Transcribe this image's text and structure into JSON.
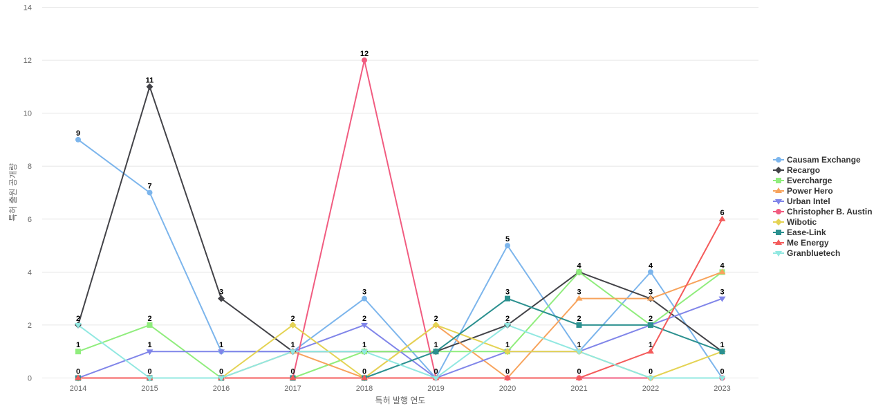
{
  "chart_data": {
    "type": "line",
    "title": "",
    "xlabel": "특허 발행 연도",
    "ylabel": "특허 출원 공개량",
    "categories": [
      "2014",
      "2015",
      "2016",
      "2017",
      "2018",
      "2019",
      "2020",
      "2021",
      "2022",
      "2023"
    ],
    "y_ticks": [
      "0",
      "2",
      "4",
      "6",
      "8",
      "10",
      "12",
      "14"
    ],
    "ylim": [
      0,
      14
    ],
    "grid": true,
    "legend_position": "right",
    "series": [
      {
        "name": "Causam Exchange",
        "color": "#7cb5ec",
        "marker": "circle",
        "values": [
          9,
          7,
          1,
          1,
          3,
          0,
          5,
          1,
          4,
          0
        ]
      },
      {
        "name": "Recargo",
        "color": "#434348",
        "marker": "diamond",
        "values": [
          2,
          11,
          3,
          1,
          1,
          1,
          2,
          4,
          3,
          1
        ]
      },
      {
        "name": "Evercharge",
        "color": "#90ed7d",
        "marker": "square",
        "values": [
          1,
          2,
          0,
          0,
          1,
          1,
          1,
          4,
          2,
          4
        ]
      },
      {
        "name": "Power Hero",
        "color": "#f7a35c",
        "marker": "triangle",
        "values": [
          0,
          0,
          0,
          1,
          0,
          2,
          0,
          3,
          3,
          4
        ]
      },
      {
        "name": "Urban Intel",
        "color": "#8085e9",
        "marker": "triangle-down",
        "values": [
          0,
          1,
          1,
          1,
          2,
          0,
          1,
          1,
          2,
          3
        ]
      },
      {
        "name": "Christopher B. Austin",
        "color": "#f15c80",
        "marker": "circle",
        "values": [
          0,
          0,
          0,
          0,
          12,
          0,
          0,
          0,
          0,
          0
        ]
      },
      {
        "name": "Wibotic",
        "color": "#e4d354",
        "marker": "diamond",
        "values": [
          0,
          0,
          0,
          2,
          0,
          2,
          1,
          1,
          0,
          1
        ]
      },
      {
        "name": "Ease-Link",
        "color": "#2b908f",
        "marker": "square",
        "values": [
          0,
          0,
          0,
          0,
          0,
          1,
          3,
          2,
          2,
          1
        ]
      },
      {
        "name": "Me Energy",
        "color": "#f45b5b",
        "marker": "triangle",
        "values": [
          0,
          0,
          0,
          0,
          0,
          0,
          0,
          0,
          1,
          6
        ]
      },
      {
        "name": "Granbluetech",
        "color": "#91e8e1",
        "marker": "triangle-down",
        "values": [
          2,
          0,
          0,
          1,
          1,
          0,
          2,
          1,
          0,
          0
        ]
      }
    ],
    "data_labels": [
      {
        "category": "2014",
        "values": [
          "9",
          "2",
          "1",
          "0"
        ]
      },
      {
        "category": "2015",
        "values": [
          "11",
          "7",
          "2",
          "1",
          "0"
        ]
      },
      {
        "category": "2016",
        "values": [
          "3",
          "1",
          "0"
        ]
      },
      {
        "category": "2017",
        "values": [
          "2",
          "1",
          "0"
        ]
      },
      {
        "category": "2018",
        "values": [
          "12",
          "3",
          "2",
          "1",
          "0"
        ]
      },
      {
        "category": "2019",
        "values": [
          "2",
          "1",
          "0"
        ]
      },
      {
        "category": "2020",
        "values": [
          "5",
          "3",
          "2",
          "1",
          "0"
        ]
      },
      {
        "category": "2021",
        "values": [
          "4",
          "3",
          "2",
          "1",
          "0"
        ]
      },
      {
        "category": "2022",
        "values": [
          "4",
          "3",
          "2",
          "1",
          "0"
        ]
      },
      {
        "category": "2023",
        "values": [
          "6",
          "4",
          "3",
          "1",
          "0"
        ]
      }
    ]
  }
}
